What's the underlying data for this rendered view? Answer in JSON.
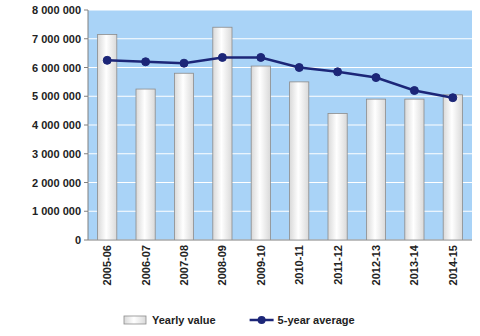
{
  "chart_data": {
    "type": "bar",
    "categories": [
      "2005-06",
      "2006-07",
      "2007-08",
      "2008-09",
      "2009-10",
      "2010-11",
      "2011-12",
      "2012-13",
      "2013-14",
      "2014-15"
    ],
    "series": [
      {
        "name": "Yearly value",
        "type": "bar",
        "color": "#d9d9d9",
        "values": [
          7150000,
          5250000,
          5800000,
          7400000,
          6050000,
          5500000,
          4400000,
          4900000,
          4900000,
          5050000
        ]
      },
      {
        "name": "5-year average",
        "type": "line",
        "color": "#1c2678",
        "marker": "circle",
        "line_style": "solid",
        "values": [
          6250000,
          6200000,
          6150000,
          6350000,
          6350000,
          6000000,
          5850000,
          5650000,
          5200000,
          4950000
        ]
      }
    ],
    "ylim": [
      0,
      8000000
    ],
    "yticks": [
      0,
      {
        "value": 1000000,
        "label": "1 000 000"
      },
      {
        "value": 2000000,
        "label": "2 000 000"
      },
      {
        "value": 3000000,
        "label": "3 000 000"
      },
      {
        "value": 4000000,
        "label": "4 000 000"
      },
      {
        "value": 5000000,
        "label": "5 000 000"
      },
      {
        "value": 6000000,
        "label": "6 000 000"
      },
      {
        "value": 7000000,
        "label": "7 000 000"
      },
      {
        "value": 8000000,
        "label": "8 000 000"
      }
    ],
    "grid": true,
    "legend": "bottom"
  }
}
